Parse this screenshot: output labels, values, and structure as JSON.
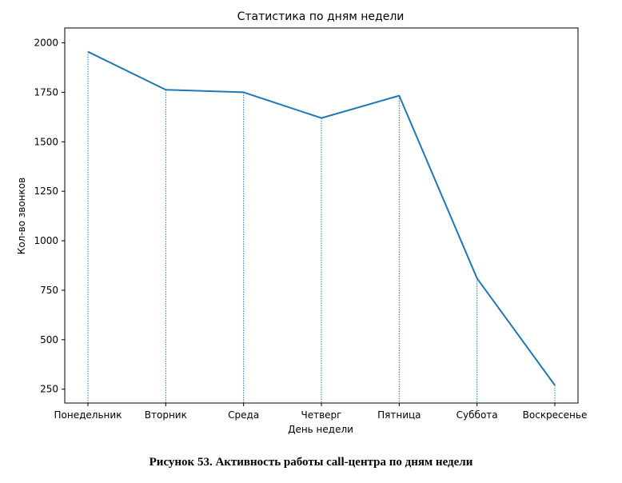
{
  "chart_data": {
    "type": "line",
    "title": "Статистика по дням недели",
    "xlabel": "День недели",
    "ylabel": "Кол-во звонков",
    "categories": [
      "Понедельник",
      "Вторник",
      "Среда",
      "Четверг",
      "Пятница",
      "Суббота",
      "Воскресенье"
    ],
    "values": [
      1955,
      1763,
      1750,
      1620,
      1733,
      810,
      270
    ],
    "ylim": [
      180,
      2075
    ],
    "yticks": [
      250,
      500,
      750,
      1000,
      1250,
      1500,
      1750,
      2000
    ],
    "grid": false,
    "drop_lines": true,
    "line_color": "#1f77b4"
  },
  "caption": "Рисунок 53. Активность работы call-центра по дням недели"
}
